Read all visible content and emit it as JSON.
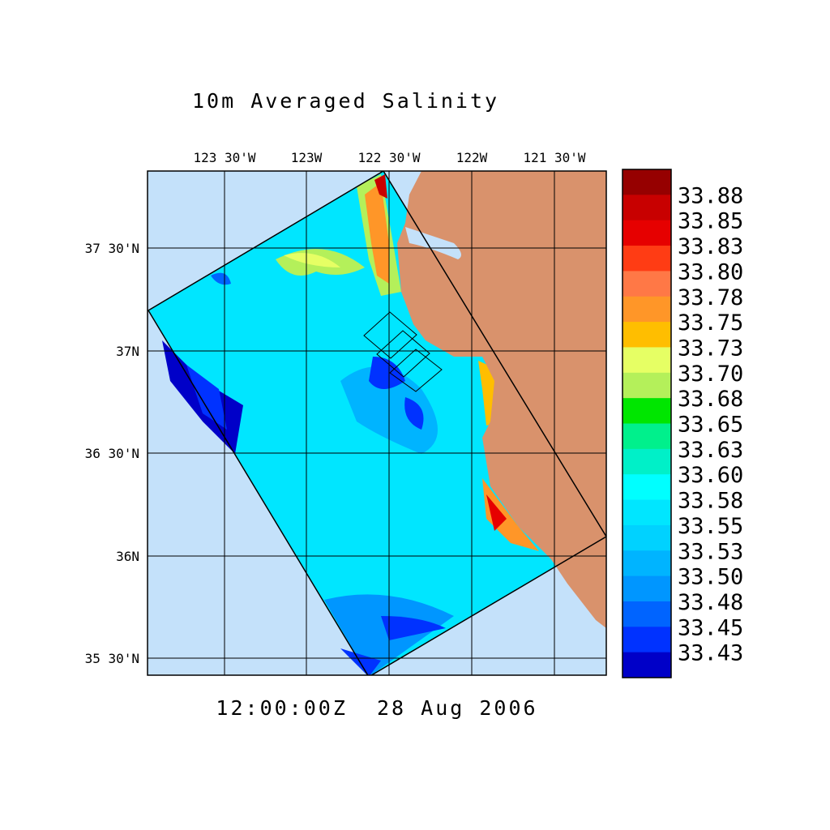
{
  "title": "10m Averaged Salinity",
  "longitude_labels": [
    "123 30'W",
    "123W",
    "122 30'W",
    "122W",
    "121 30'W"
  ],
  "latitude_labels": [
    "37 30'N",
    "37N",
    "36 30'N",
    "36N",
    "35 30'N"
  ],
  "colorbar": {
    "labels": [
      "33.88",
      "33.85",
      "33.83",
      "33.80",
      "33.78",
      "33.75",
      "33.73",
      "33.70",
      "33.68",
      "33.65",
      "33.63",
      "33.60",
      "33.58",
      "33.55",
      "33.53",
      "33.50",
      "33.48",
      "33.45",
      "33.43"
    ],
    "colors": [
      "#960000",
      "#c80000",
      "#e60000",
      "#ff3c14",
      "#ff7846",
      "#ff9628",
      "#ffbe00",
      "#e6ff64",
      "#b4f05a",
      "#00e600",
      "#00f08c",
      "#00f0c8",
      "#00ffff",
      "#00e6ff",
      "#00d2ff",
      "#00b4ff",
      "#0096ff",
      "#0064ff",
      "#0032ff",
      "#0000c8"
    ]
  },
  "timestamp": "12:00:00Z  28 Aug 2006"
}
